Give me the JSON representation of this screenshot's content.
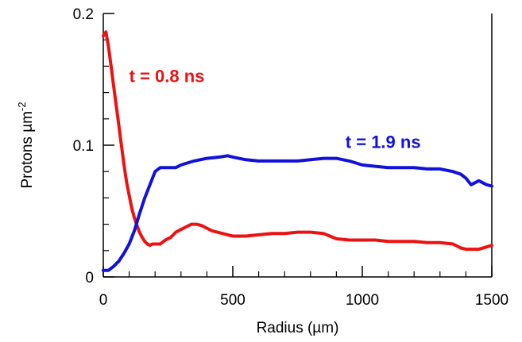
{
  "chart_data": {
    "type": "line",
    "title": "",
    "xlabel": "Radius (µm)",
    "ylabel_main": "Protons µm",
    "ylabel_sup": "-2",
    "xlim": [
      0,
      1500
    ],
    "ylim": [
      0,
      0.2
    ],
    "x_ticks": [
      0,
      500,
      1000,
      1500
    ],
    "x_tick_labels": [
      "0",
      "500",
      "1000",
      "1500"
    ],
    "y_ticks": [
      0,
      0.1,
      0.2
    ],
    "y_tick_labels": [
      "0",
      "0.1",
      "0.2"
    ],
    "grid": false,
    "legend": "none",
    "series": [
      {
        "label": "t = 0.8 ns",
        "color": "#ee1111",
        "x": [
          0,
          10,
          20,
          30,
          40,
          50,
          60,
          70,
          80,
          90,
          100,
          110,
          120,
          130,
          140,
          150,
          160,
          170,
          180,
          190,
          200,
          220,
          240,
          260,
          280,
          300,
          320,
          340,
          360,
          380,
          400,
          420,
          440,
          460,
          480,
          500,
          550,
          600,
          650,
          700,
          750,
          800,
          850,
          900,
          950,
          1000,
          1050,
          1100,
          1150,
          1200,
          1250,
          1300,
          1350,
          1380,
          1400,
          1450,
          1500
        ],
        "y": [
          0.183,
          0.186,
          0.175,
          0.16,
          0.145,
          0.13,
          0.115,
          0.1,
          0.085,
          0.072,
          0.062,
          0.052,
          0.045,
          0.039,
          0.034,
          0.03,
          0.027,
          0.025,
          0.024,
          0.025,
          0.025,
          0.025,
          0.028,
          0.03,
          0.034,
          0.036,
          0.038,
          0.04,
          0.04,
          0.039,
          0.037,
          0.035,
          0.034,
          0.033,
          0.032,
          0.031,
          0.031,
          0.032,
          0.033,
          0.033,
          0.034,
          0.034,
          0.033,
          0.029,
          0.028,
          0.028,
          0.028,
          0.027,
          0.027,
          0.027,
          0.026,
          0.026,
          0.025,
          0.022,
          0.021,
          0.021,
          0.024
        ]
      },
      {
        "label": "t = 1.9 ns",
        "color": "#1111dd",
        "x": [
          0,
          20,
          40,
          60,
          80,
          100,
          120,
          140,
          160,
          180,
          200,
          220,
          250,
          280,
          300,
          350,
          400,
          450,
          480,
          500,
          550,
          600,
          650,
          700,
          750,
          800,
          850,
          900,
          950,
          1000,
          1050,
          1100,
          1150,
          1200,
          1250,
          1300,
          1350,
          1380,
          1400,
          1420,
          1450,
          1480,
          1500
        ],
        "y": [
          0.005,
          0.005,
          0.008,
          0.012,
          0.018,
          0.025,
          0.035,
          0.048,
          0.06,
          0.07,
          0.08,
          0.083,
          0.083,
          0.083,
          0.085,
          0.088,
          0.09,
          0.091,
          0.092,
          0.091,
          0.089,
          0.088,
          0.088,
          0.088,
          0.088,
          0.089,
          0.09,
          0.09,
          0.088,
          0.085,
          0.084,
          0.083,
          0.083,
          0.083,
          0.082,
          0.082,
          0.08,
          0.078,
          0.075,
          0.07,
          0.073,
          0.07,
          0.069
        ]
      }
    ],
    "annotations": [
      {
        "text": "t = 0.8 ns",
        "color": "#ee1111",
        "x": 100,
        "y": 0.148
      },
      {
        "text": "t = 1.9 ns",
        "color": "#1111dd",
        "x": 935,
        "y": 0.098
      }
    ]
  }
}
